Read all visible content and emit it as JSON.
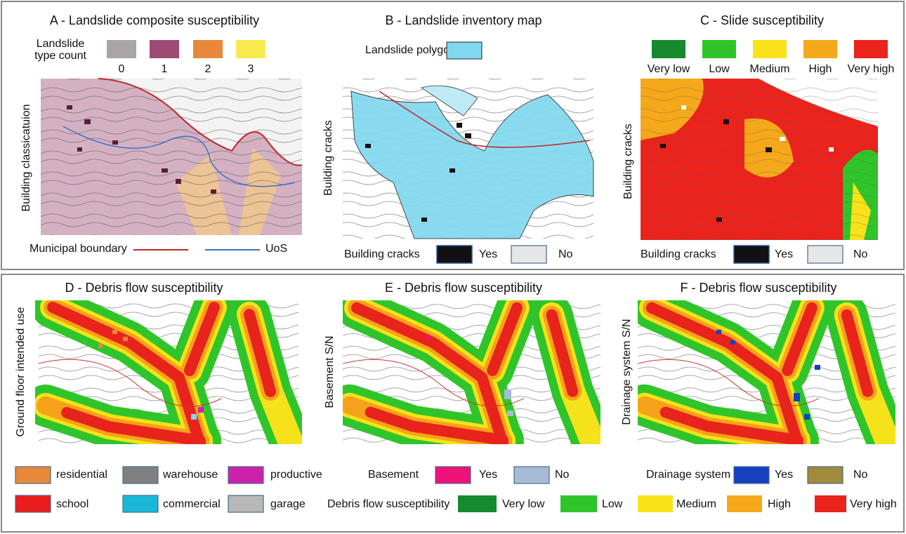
{
  "panels": [
    {
      "title": "A - Landslide composite susceptibility",
      "side_label": "Building classicatuion",
      "legend_title": [
        "Landslide",
        "type count"
      ],
      "legend": [
        "0",
        "1",
        "2",
        "3"
      ],
      "lines": [
        "Municipal boundary",
        "UoS"
      ]
    },
    {
      "title": "B - Landslide inventory map",
      "side_label": "Building cracks",
      "legend": [
        "Landslide polygon"
      ],
      "bottom_legend": {
        "title": "Building cracks",
        "items": [
          "Yes",
          "No"
        ]
      }
    },
    {
      "title": "C - Slide susceptibility",
      "side_label": "Building cracks",
      "legend": [
        "Very low",
        "Low",
        "Medium",
        "High",
        "Very high"
      ],
      "bottom_legend": {
        "title": "Building cracks",
        "items": [
          "Yes",
          "No"
        ]
      }
    },
    {
      "title": "D - Debris flow susceptibility",
      "side_label": "Ground floor intended use",
      "legend": [
        "residential",
        "warehouse",
        "productive",
        "school",
        "commercial",
        "garage"
      ]
    },
    {
      "title": "E - Debris flow susceptibility",
      "side_label": "Basement S/N",
      "bottom_legend": {
        "title": "Basement",
        "items": [
          "Yes",
          "No"
        ]
      }
    },
    {
      "title": "F - Debris flow susceptibility",
      "side_label": "Drainage system S/N",
      "bottom_legend": {
        "title": "Drainage system",
        "items": [
          "Yes",
          "No"
        ]
      }
    }
  ],
  "shared_legend": {
    "title": "Debris flow susceptibility",
    "items": [
      "Very low",
      "Low",
      "Medium",
      "High",
      "Very high"
    ]
  }
}
